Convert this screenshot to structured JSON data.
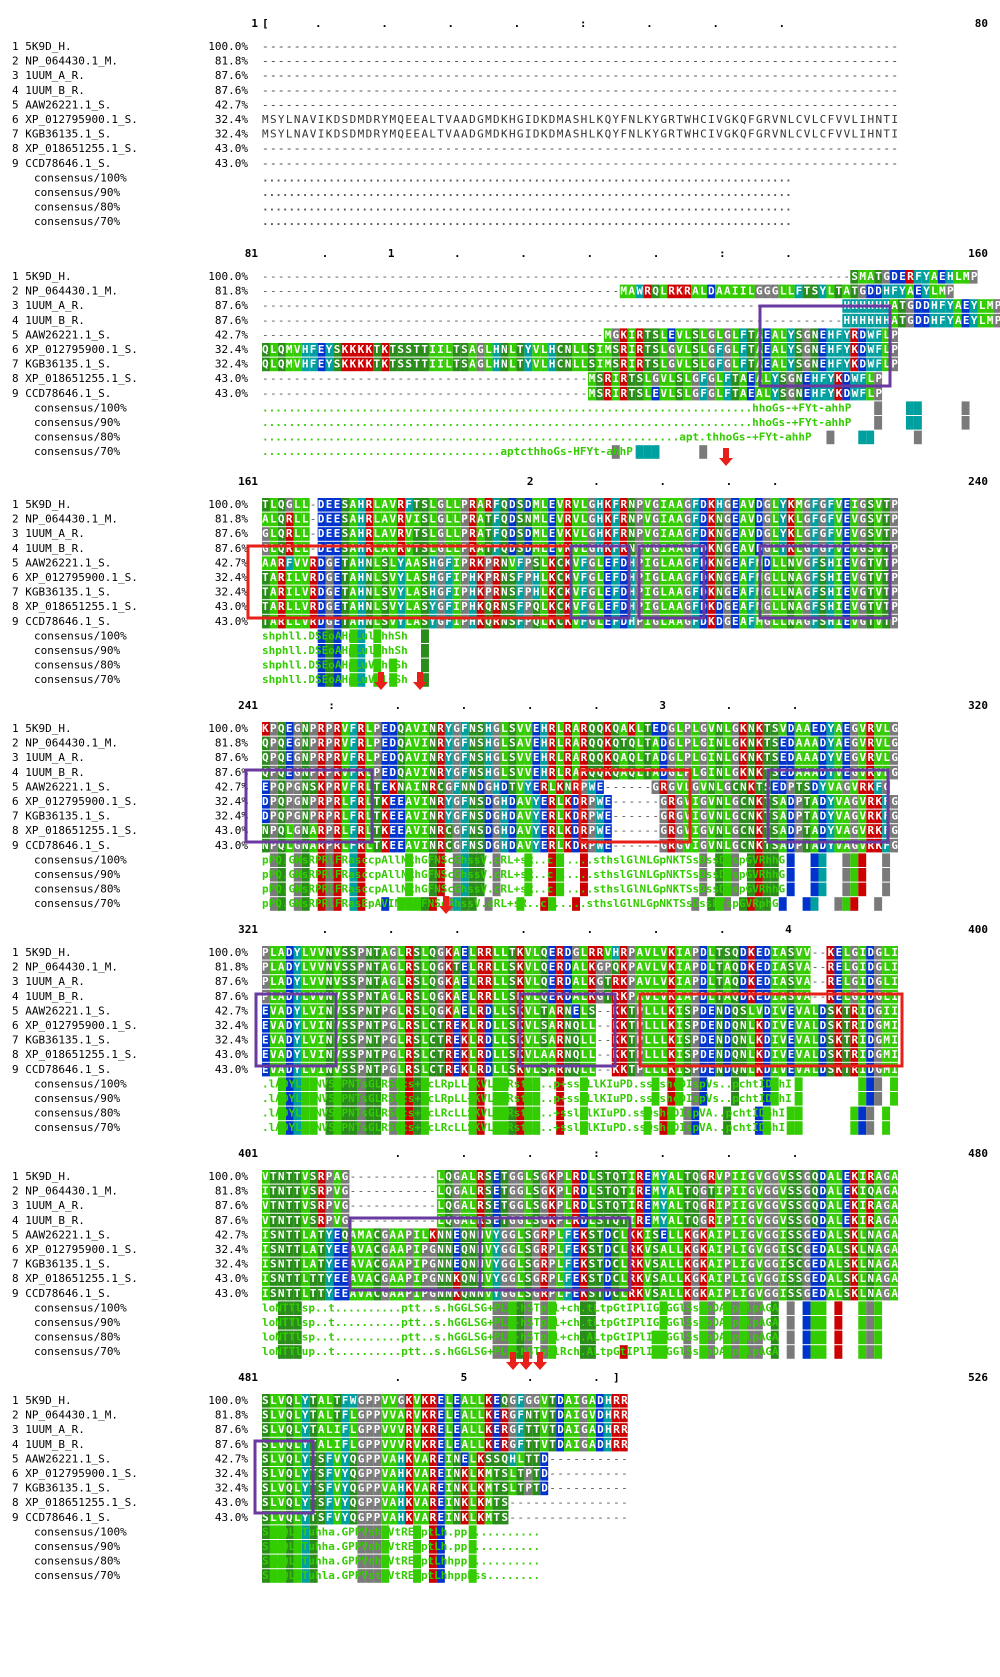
{
  "figure": "multiple-sequence-alignment",
  "blocks": [
    {
      "start": "1",
      "end": "80",
      "ruler": "[       .         .         .         .         :         .         .         .",
      "sequences": [
        "--------------------------------------------------------------------------------",
        "--------------------------------------------------------------------------------",
        "--------------------------------------------------------------------------------",
        "--------------------------------------------------------------------------------",
        "--------------------------------------------------------------------------------",
        "MSYLNAVIKDSDMDRYMQEEALTVAADGMDKHGIDKDMASHLKQYFNLKYGRTWHCIVGKQFGRVNLCVLCFVVLIHNTI",
        "MSYLNAVIKDSDMDRYMQEEALTVAADGMDKHGIDKDMASHLKQYFNLKYGRTWHCIVGKQFGRVNLCVLCFVVLIHNTI",
        "--------------------------------------------------------------------------------",
        "--------------------------------------------------------------------------------"
      ],
      "consensus": [
        "................................................................................",
        "................................................................................",
        "................................................................................",
        "................................................................................"
      ]
    },
    {
      "start": "81",
      "end": "160",
      "ruler": "         .         1         .         .         .         .         :         .",
      "sequences": [
        "--------------------------------------------------------------------------SMATGDERFYAEHLMP",
        "---------------------------------------------MAWRQLRKRALDAAIILGGGLLFTSYLTATGDDHFYAEYLMP",
        "-------------------------------------------------------------------------HHHHHHATGDDHFYAEYLMP",
        "-------------------------------------------------------------------------HHHHHHATGDDHFYAEYLMP",
        "-------------------------------------------MGKIRTSLEVLSLGLGLFTAEALYSGNEHFYRDWFLP",
        "QLQMVHFEYSKKKKTKTSSTTIILTSAGLHNLTYVLHCNLLSIMSRIRTSLGVLSLGFGLFTAEALYSGNEHFYKDWFLP",
        "QLQMVHFEYSKKKKTKTSSTTIILTSAGLHNLTYVLHCNLLSIMSRIRTSLGVLSLGFGLFTAEALYSGNEHFYKDWFLP",
        "-----------------------------------------MSRIRTSLGVLSLGFGLFTAEALYSGNEHFYKDWFLP",
        "-----------------------------------------MSRIRTSLEVLSLGFGLFTAEALYSGNEHFYKDWFLP"
      ],
      "consensus": [
        "..........................................................................hhoGs-+FYt-ahhP",
        "..........................................................................hhoGs-+FYt-ahhP",
        "...............................................................apt.thhoGs-+FYt-ahhP",
        "....................................aptcthhoGs-HFYt-ahhP"
      ]
    },
    {
      "start": "161",
      "end": "240",
      "ruler": "                                        2         .         .         .      .",
      "sequences": [
        "TLQGLL-DEESAHRLAVRFTSLGLLPRARFQDSDMLEVRVLGHKFRNPVGIAAGFDKHGEAVDGLYKMGFGFVEIGSVTP",
        "ALQRLL-DEESAHRLAVRVISLGLLPRATFQDSNMLEVRVLGHKFRNPVGIAAGFDKNGEAVDGLYKLGFGFVEVGSVTP",
        "GLQRLL-DEESAHRLAVRVTSLGLLPRATFQDSDMLEVKVLGHKFRNPVGIAAGFDKNGEAVDGLYKLGFGFVEVGSVTP",
        "GLQRLL-DEESAHRLAVRVTSLGLLPRATFQDSDMLEVKVLGHKFRNPVGIAAGFDKNGEAVDGLYKLGFGFVEVGSVTP",
        "AARFVVRDGETAHNLSLYAASHGFIPRKPRNVFPSLKCKVFGLEFDHPIGLAAGFDKNGEAFMDLLNVGFSHIEVGTVTP",
        "TARILVRDGETAHNLSVYLASHGFIPHKPRNSFPHLKCKVFGLEFDHPIGLAAGFDKNGEAFMGLLNAGFSHIEVGTVTP",
        "TARILVRDGETAHNLSVYLASHGFIPHKPRNSFPHLKCKVFGLEFDHPIGLAAGFDKNGEAFMGLLNAGFSHIEVGTVTP",
        "TARLLVRDGETAHNLSVYLASYGFIPHKQRNSFPQLKCKVFGLEFDHPIGLAAGFDKDGEAFMGLLNAGFSHIEVGTVTP",
        "TARLLVRDGETAHNLSVYLASYGFIPHKQRNSFPQLKCKVFGLEFDHPIGLAAGFDKDGEAFMGLLNAGFSHIEVGTVTP"
      ],
      "consensus": [
        "shphll.DSEoAHpLulhhhSh",
        "shphll.DSEoAHpLulhhhSh",
        "shphll.DSEoAHpLuVhhhSh",
        "shphll.DSEoAHpLuVhlsSh"
      ]
    },
    {
      "start": "241",
      "end": "320",
      "ruler": "          :         .         .         .         .         3         .         .",
      "sequences": [
        "KPQEGNPRPRVFRLPEDQAVINRYGFNSHGLSVVEHRLRARQQKQAKLTEDGLPLGVNLGKNKTSVDAAEDYAEGVRVLG",
        "QPQEGNPRPRVFRLPEDQAVINRYGFNSHGLSAVEHRLRARQQKQTQLTADGLPLGINLGKNKTSEDAAADYAEGVRVLG",
        "QPQEGNPRPRVFRLPEDQAVINRYGFNSHGLSVVEHRLRARQQKQAQLTADGLPLGINLGKNKTSEDAAADYVEGVRVLG",
        "QPQEGNPRPRVFRLPEDQAVINRYGFNSHGLSVVEHRLRARQQKQAQLTADGLPLGINLGKNKTSEDAAADYVEGVRVLG",
        "EPQPGNSKPRVFRLTEKNAINRCGFNNDGHDTVYERLKNRPWE------GRGVLGVNLGCNKTSEDPTSDYVAGVRKFG",
        "DPQPGNPRPRLFRLTKEEAVINRYGFNSDGHDAVYERLKDRPWE------GRGVIGVNLGCNKTSADPTADYVAGVRKFG",
        "DPQPGNPRPRLFRLTKEEAVINRYGFNSDGHDAVYERLKDRPWE------GRGVIGVNLGCNKTSADPTADYVAGVRKFG",
        "NPQLGNARPRLFRLTKEEAVINRCGFNSDGHDAVYERLKDRPWE------GRGVIGVNLGCNKTSADPTADYVAGVRKFG",
        "NPQLGNARPRLFRLTKEEAVINRCGFNSDGHDAVYERLKDRPWE------GRGVIGVNLGCNKTSADPTADYVAGVRKFG"
      ],
      "consensus": [
        "pPQ.GNsRPRlFRasccpAllNRhGFNScGhssV.cRL+sR..c......sthslGlNLGpNKTSsDssDYspGVRhhG",
        "pPQ.GNsRPRlFRasccpAllNRhGFNScGhssV.cRL+sR..c......sthslGlNLGpNKTSsDssDYspGVRhhG",
        "pPQ.GNsRPRlFRasccpAllNRhGFNScGhssV.cRL+sR..c......sthslGlNLGpNKTSsDssDYspGVRhhG",
        "pPQ.GNsRPRlFRasEpAVINRhGFNScGhssV.cRL+sR..c......sthslGlNLGpNKTSsDssDYspGVRphG"
      ]
    },
    {
      "start": "321",
      "end": "400",
      "ruler": "         .         .         .         .         .         .         .         4",
      "sequences": [
        "PLADYLVVNVSSPNTAGLRSLQGKAELRRLLTKVLQERDGLRRVHRPAVLVKIAPDLTSQDKEDIASVV--KELGIDGLI",
        "PLADYLVVNVSSPNTAGLRSLQGKTELRRLLSKVLQERDALKGPQKPAVLVKIAPDLTAQDKEDIASVA--RELGIDGLI",
        "PLADYLVVNVSSPNTAGLRSLQGKAELRRLLSKVLQERDALKGTRKPAVLVKIAPDLTAQDKEDIASVA--RELGIDGLI",
        "PLADYLVVNVSSPNTAGLRSLQGKAELRRLLSKVLQERDALKGTRKPAVLVKIAPDLTAQDKEDIASVA--RELGIDGLI",
        "EVADYLVINVSSPNTPGLRSLQGKAELRDLLSKVLTARNELS--KKTPLLLKISPDENDQSLVDIVEVALDSKTRIDGII",
        "EVADYLVINVSSPNTPGLRSLCTREKLRDLLSKVLSARNQLL--KKTPLLLKISPDENDQNLKDIVEVALDSKTRIDGMI",
        "EVADYLVINVSSPNTPGLRSLCTREKLRDLLSKVLSARNQLL--KKTPLLLKISPDENDQNLKDIVEVALDSKTRIDGMI",
        "EVADYLVINVSSPNTPGLRSLCTREKLRDLLSKVLAARNQLL--KKTPLLLKISPDENDQNLKDIVEVALDSKTRIDGMI",
        "EVADYLVINVSSPNTPGLRSLCTREKLRDLLSKVLSARNQLL--KKTPLLLKISPDENDQNLKDIVEVALDSKTRIDGMI"
      ],
      "consensus": [
        ".lADYLVlNVSSPNTsGLRSLcs+tcLRpLL+KVLttRstL...p+sslLlKIuPD.ssQshcDIspVs..pchtIDGhI",
        ".lADYLVlNVSSPNTsGLRSLcs+tcLRpLL+KVLttRstL...p+sslLlKIuPD.ssQshcDIspVs..pchtIDGhI",
        ".lADYLVlNVSSPNTsGLRSLcs+pcLRcLLSKVLttRstL...+sslLlKIuPD.ssQshcDIspVA..pchtIDGhI",
        ".lADYLVlNVSSPNTsGLRSLcs+pcLRcLLSKVLptRstLp..+sslLlKIuPD.ssQshcDIspVA..pchtIDGhI"
      ]
    },
    {
      "start": "401",
      "end": "480",
      "ruler": "                    .         .         .         :         .         .         .",
      "sequences": [
        "VTNTTVSRPAG-----------LQGALRSETGGLSGKPLRDLSTQTIREMYALTQGRVPIIGVGGVSSGQDALEKIRAGA",
        "ITNTTVSRPVG-----------LQGALRSETGGLSGKPLRDLSTQTIREMYALTQGTIPIIGVGGVSSGQDALEKIQAGA",
        "VTNTTVSRPVG-----------LQGALRSETGGLSGKPLRDLSTQTIREMYALTQGRIPIIGVGGVSSGQDALEKIRAGA",
        "VTNTTVSRPVG-----------LQGALRSETGGLSGKPLRDLSTQTIREMYALTQGRIPIIGVGGVSSGQDALEKIRAGA",
        "ISNTTLATYEQAMACGAAPILKNNEQNNVYGGLSGRPLFEKSTDCLKKISELLKGKAIPLIGVGGISSGEDALSKLNAGA",
        "ISNTTLATYEEAVACGAAPIPGNNEQNNVYGGLSGRPLFEKSTDCLRKVSALLKGKAIPLIGVGGISCGEDALSKLNAGA",
        "ISNTTLATYEEAVACGAAPIPGNNEQNNVYGGLSGRPLFEKSTDCLRKVSALLKGKAIPLIGVGGISCGEDALSKLNAGA",
        "ISNTTLTTYEEAVACGAAPIPGNNKQNNVYGGLSGRPLFEKSTDCLRKVSALLKGKAIPLIGVGGISSGEDALSKLNAGA",
        "ISNTTLTTYEEAVACGAAPIPGNNKQNNVYGGLSGRPLFEKSTDCLRKVSALLKGKAIPLIGVGGISSGEDALSKLNAGA"
      ],
      "consensus": [
        "loNTTlsp..t..........ptt..s.hGGLSG+PLh-hSTpsl+ch.tLtpGtIPlIGVGGlSsGpDALpKlpAGA",
        "loNTTlsp..t..........ptt..s.hGGLSG+PLh-hSTpsl+ch.tLtpGtIPlIGVGGlSsGpDALpKlpAGA",
        "loNTTlsp..t..........ptt..s.hGGLSG+PLh-hSTpsl+ch.ALtpGtIPlIGVGGlSsGpDALpKlpAGA",
        "loNTTlup..t..........ptt..s.hGGLSG+PLh-hSTpslRch.ALtpGtIPlIGVGGlSsGpDALpKlpAGA"
      ]
    },
    {
      "start": "481",
      "end": "526",
      "ruler": "                    .         5         .         .  ]",
      "sequences": [
        "SLVQLYTALTFWGPPVVGKVKRELEALLKEQGFGGVTDAIGADHRR",
        "SLVQLYTALTFLGPPVVARVKRELEALLKERGFNTVTDAIGVDHRR",
        "SLVQLYTALIFLGPPVVVRVKRELEALLKERGFTTVTDAIGADHRR",
        "SLVQLYTALIFLGPPVVVRVKRELEALLKERGFTTVTDAIGADHRR",
        "SLVQLYTSFVYQGPPVAHKVAREINELKSSQHLTTD----------",
        "SLVQLYTSFVYQGPPVAHKVAREINKLKMTSLTPTD----------",
        "SLVQLYTSFVYQGPPVAHKVAREINKLKMTSLTPTD----------",
        "SLVQLYTSFVYQGPPVAHKVAREINKLKMTS---------------",
        "SLVQLYTSFVYQGPPVAHKVAREINKLKMTS---------------"
      ],
      "consensus": [
        "SLVQLYTuhha.GPPVsh+VtRElptLh.pp...........",
        "SLVQLYTuhha.GPPVsh+VtRElptLh.pp...........",
        "SLVQLYTuhha.GPPVsh+VtRElptLhhpp...........",
        "SLVQLYTuhla.GPPVst+VtRElptLhhpphss........"
      ]
    }
  ],
  "names": [
    "1 5K9D_H.",
    "2 NP_064430.1_M.",
    "3 1UUM_A_R.",
    "4 1UUM_B_R.",
    "5 AAW26221.1_S.",
    "6 XP_012795900.1_S.",
    "7 KGB36135.1_S.",
    "8 XP_018651255.1_S.",
    "9 CCD78646.1_S."
  ],
  "identities": [
    "100.0%",
    "81.8%",
    "87.6%",
    "87.6%",
    "42.7%",
    "32.4%",
    "32.4%",
    "43.0%",
    "43.0%"
  ],
  "consensus_labels": [
    "consensus/100%",
    "consensus/90%",
    "consensus/80%",
    "consensus/70%"
  ],
  "colors": {
    "hydrophobic": "#33cc00",
    "aromatic": "#00a0a0",
    "basic": "#cc0000",
    "acidic": "#0033cc",
    "polar": "#2a8c1a",
    "glycine": "#7a7a7a",
    "proline": "#7a7a7a",
    "marker_arrow": "#e8201a",
    "box_purple": "#6a3aa0",
    "box_red": "#e8201a",
    "consensus_text": "#33cc00"
  }
}
